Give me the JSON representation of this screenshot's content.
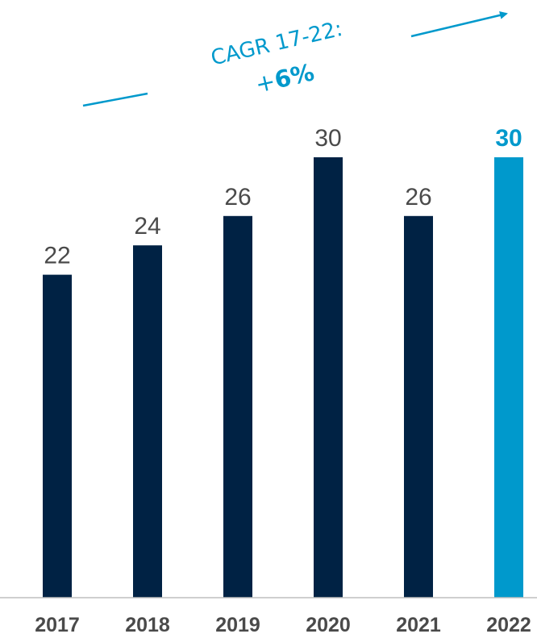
{
  "colors": {
    "bar": "#002244",
    "highlight": "#0099cc",
    "label": "#4a4a4a",
    "axis": "#bfbfbf"
  },
  "annotation": {
    "cagr_label": "CAGR 17-22:",
    "cagr_sign": "+",
    "cagr_value": "6%"
  },
  "chart_data": {
    "type": "bar",
    "categories": [
      "2017",
      "2018",
      "2019",
      "2020",
      "2021",
      "2022"
    ],
    "values": [
      22,
      24,
      26,
      30,
      26,
      30
    ],
    "value_labels": [
      "22",
      "24",
      "26",
      "30",
      "26",
      "30"
    ],
    "highlight_index": 5,
    "title": "",
    "xlabel": "",
    "ylabel": "",
    "ylim": [
      0,
      30
    ],
    "grid": false,
    "legend": "none"
  }
}
